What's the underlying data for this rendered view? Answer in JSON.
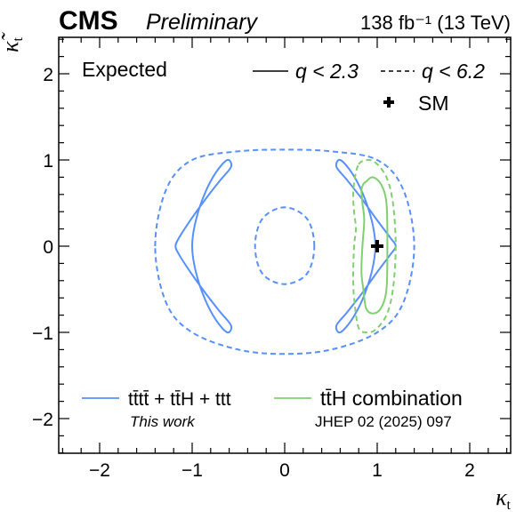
{
  "header": {
    "experiment": "CMS",
    "status": "Preliminary",
    "luminosity": "138 fb⁻¹ (13 TeV)"
  },
  "chart_data": {
    "type": "contour",
    "xlabel": "κt",
    "ylabel": "κ̃t",
    "xlim": [
      -2.4,
      2.4
    ],
    "ylim": [
      -2.4,
      2.4
    ],
    "x_ticks": [
      -2,
      -1,
      0,
      1,
      2
    ],
    "y_ticks": [
      -2,
      -1,
      0,
      1,
      2
    ],
    "x_tick_labels": [
      "−2",
      "−1",
      "0",
      "1",
      "2"
    ],
    "y_tick_labels": [
      "−2",
      "−1",
      "0",
      "1",
      "2"
    ],
    "annotation": "Expected",
    "style_legend": [
      {
        "style": "solid",
        "label": "q < 2.3"
      },
      {
        "style": "dashed",
        "label": "q < 6.2"
      }
    ],
    "sm_point": {
      "x": 1,
      "y": 0,
      "label": "SM"
    },
    "series": [
      {
        "name": "tt̄tt̄ + tt̄H + ttt",
        "note": "This work",
        "color": "#5790fc",
        "contours": [
          {
            "level": "q < 2.3",
            "style": "solid",
            "x": [
              -0.62,
              -0.58,
              -0.7,
              -0.86,
              -1.02,
              -1.14,
              -1.18,
              -1.14,
              -1.02,
              -0.86,
              -0.7,
              -0.58,
              -0.62,
              -0.74,
              -0.86,
              -0.96,
              -1.0,
              -0.96,
              -0.86,
              -0.74,
              -0.62
            ],
            "y": [
              1.0,
              0.92,
              0.76,
              0.54,
              0.3,
              0.1,
              0.0,
              -0.1,
              -0.3,
              -0.54,
              -0.76,
              -0.92,
              -1.0,
              -0.86,
              -0.62,
              -0.3,
              0.0,
              0.3,
              0.62,
              0.86,
              1.0
            ]
          },
          {
            "level": "q < 2.3",
            "style": "solid",
            "x": [
              0.6,
              0.56,
              0.68,
              0.84,
              1.0,
              1.14,
              1.2,
              1.14,
              1.0,
              0.84,
              0.68,
              0.56,
              0.6,
              0.72,
              0.84,
              0.94,
              0.98,
              0.94,
              0.84,
              0.72,
              0.6
            ],
            "y": [
              1.0,
              0.92,
              0.76,
              0.54,
              0.3,
              0.1,
              0.0,
              -0.1,
              -0.3,
              -0.54,
              -0.76,
              -0.92,
              -1.0,
              -0.86,
              -0.62,
              -0.3,
              0.0,
              0.3,
              0.62,
              0.86,
              1.0
            ]
          },
          {
            "level": "q < 6.2",
            "style": "dashed",
            "x": [
              -1.4,
              -1.28,
              -1.0,
              -0.5,
              0.0,
              0.5,
              1.0,
              1.28,
              1.4,
              1.28,
              1.0,
              0.5,
              0.0,
              -0.5,
              -1.0,
              -1.28,
              -1.4
            ],
            "y": [
              0.0,
              0.66,
              1.0,
              1.1,
              1.12,
              1.1,
              1.0,
              0.66,
              0.0,
              -0.66,
              -1.0,
              -1.2,
              -1.25,
              -1.2,
              -1.0,
              -0.66,
              0.0
            ]
          },
          {
            "level": "q < 6.2",
            "style": "dashed",
            "x": [
              0.32,
              0.24,
              0.0,
              -0.24,
              -0.32,
              -0.24,
              0.0,
              0.24,
              0.32
            ],
            "y": [
              0.0,
              0.32,
              0.45,
              0.32,
              0.0,
              -0.32,
              -0.44,
              -0.32,
              0.0
            ]
          }
        ]
      },
      {
        "name": "tt̄H combination",
        "note": "JHEP 02 (2025) 097",
        "color": "#7fd06f",
        "contours": [
          {
            "level": "q < 2.3",
            "style": "solid",
            "x": [
              0.88,
              0.95,
              1.04,
              1.1,
              1.11,
              1.1,
              1.04,
              0.95,
              0.88,
              0.85,
              0.83,
              0.84,
              0.86,
              0.84,
              0.83,
              0.85,
              0.88
            ],
            "y": [
              0.75,
              0.8,
              0.72,
              0.5,
              0.0,
              -0.5,
              -0.72,
              -0.78,
              -0.72,
              -0.5,
              -0.3,
              0.0,
              0.3,
              0.5,
              0.65,
              0.72,
              0.75
            ]
          },
          {
            "level": "q < 6.2",
            "style": "dashed",
            "x": [
              0.8,
              0.88,
              0.98,
              1.1,
              1.17,
              1.2,
              1.17,
              1.1,
              0.98,
              0.88,
              0.8,
              0.76,
              0.74,
              0.75,
              0.77,
              0.75,
              0.74,
              0.76,
              0.8
            ],
            "y": [
              0.95,
              1.0,
              0.97,
              0.8,
              0.5,
              0.0,
              -0.5,
              -0.8,
              -0.97,
              -1.0,
              -0.95,
              -0.7,
              -0.4,
              0.0,
              0.2,
              0.4,
              0.6,
              0.8,
              0.95
            ]
          }
        ]
      }
    ]
  }
}
